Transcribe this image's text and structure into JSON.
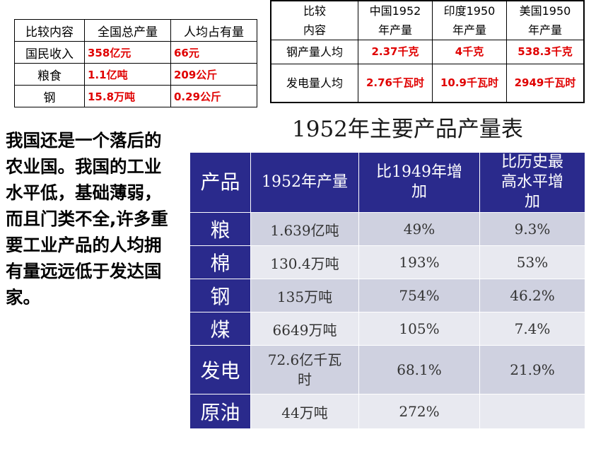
{
  "table1": {
    "headers": [
      "比较内容",
      "全国总产量",
      "人均占有量"
    ],
    "rows": [
      [
        "国民收入",
        "358亿元",
        "66元"
      ],
      [
        "粮食",
        "1.1亿吨",
        "209公斤"
      ],
      [
        "钢",
        "15.8万吨",
        "0.29公斤"
      ]
    ]
  },
  "table2": {
    "headers": [
      [
        "比较",
        "内容"
      ],
      [
        "中国1952",
        "年产量"
      ],
      [
        "印度1950",
        "年产量"
      ],
      [
        "美国1950",
        "年产量"
      ]
    ],
    "rows": [
      [
        "钢产量人均",
        "2.37千克",
        "4千克",
        "538.3千克"
      ],
      [
        "发电量人均",
        "2.76千瓦时",
        "10.9千瓦时",
        "2949千瓦时"
      ]
    ]
  },
  "caption": "1952年主要产品产量表",
  "paragraph": "我国还是一个落后的农业国。我国的工业水平低，基础薄弱，而且门类不全,许多重要工业产品的人均拥有量远远低于发达国家。",
  "table3": {
    "headers": [
      "产品",
      "1952年产量",
      "比1949年增加",
      "比历史最高水平增加"
    ],
    "rows": [
      [
        "粮",
        "1.639亿吨",
        "49%",
        "9.3%"
      ],
      [
        "棉",
        "130.4万吨",
        "193%",
        "53%"
      ],
      [
        "钢",
        "135万吨",
        "754%",
        "46.2%"
      ],
      [
        "煤",
        "6649万吨",
        "105%",
        "7.4%"
      ],
      [
        "发电",
        "72.6亿千瓦时",
        "68.1%",
        "21.9%"
      ],
      [
        "原油",
        "44万吨",
        "272%",
        ""
      ]
    ]
  }
}
